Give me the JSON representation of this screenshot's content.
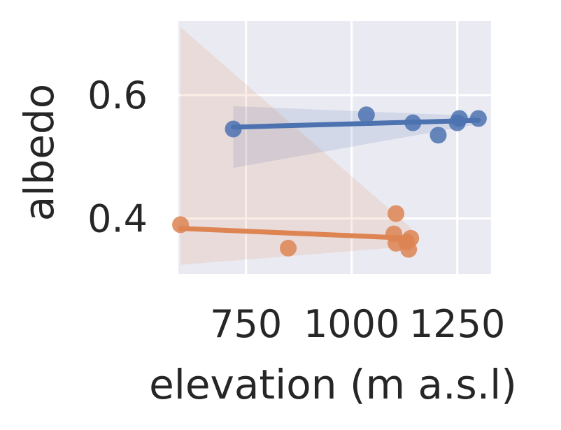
{
  "chart_data": {
    "type": "scatter",
    "xlabel": "elevation (m a.s.l)",
    "ylabel": "albedo",
    "xlim": [
      590,
      1330
    ],
    "ylim": [
      0.31,
      0.72
    ],
    "x_ticks": [
      750,
      1000,
      1250
    ],
    "x_tick_labels": [
      "750",
      "1000",
      "1250"
    ],
    "y_ticks": [
      0.4,
      0.6
    ],
    "y_tick_labels": [
      "0.4",
      "0.6"
    ],
    "grid": true,
    "legend": "none",
    "colors": {
      "series1": "#4c72b0",
      "series2": "#dd8452",
      "background": "#eaeaf2",
      "grid": "#ffffff",
      "text": "#262626"
    },
    "series": [
      {
        "color": "#4c72b0",
        "points": [
          {
            "x": 720,
            "y": 0.545
          },
          {
            "x": 1035,
            "y": 0.568
          },
          {
            "x": 1145,
            "y": 0.555
          },
          {
            "x": 1205,
            "y": 0.535
          },
          {
            "x": 1250,
            "y": 0.555
          },
          {
            "x": 1255,
            "y": 0.562
          },
          {
            "x": 1300,
            "y": 0.562
          }
        ],
        "fit": {
          "x0": 720,
          "y0": 0.548,
          "x1": 1300,
          "y1": 0.559
        },
        "ci": [
          {
            "x": 720,
            "lo": 0.482,
            "hi": 0.582
          },
          {
            "x": 1300,
            "lo": 0.553,
            "hi": 0.566
          }
        ]
      },
      {
        "color": "#dd8452",
        "points": [
          {
            "x": 595,
            "y": 0.39
          },
          {
            "x": 850,
            "y": 0.352
          },
          {
            "x": 1105,
            "y": 0.408
          },
          {
            "x": 1100,
            "y": 0.375
          },
          {
            "x": 1105,
            "y": 0.36
          },
          {
            "x": 1130,
            "y": 0.362
          },
          {
            "x": 1140,
            "y": 0.368
          },
          {
            "x": 1135,
            "y": 0.35
          }
        ],
        "fit": {
          "x0": 595,
          "y0": 0.384,
          "x1": 1140,
          "y1": 0.368
        },
        "ci": [
          {
            "x": 595,
            "lo": 0.325,
            "hi": 0.71
          },
          {
            "x": 1140,
            "lo": 0.355,
            "hi": 0.385
          }
        ]
      }
    ]
  }
}
